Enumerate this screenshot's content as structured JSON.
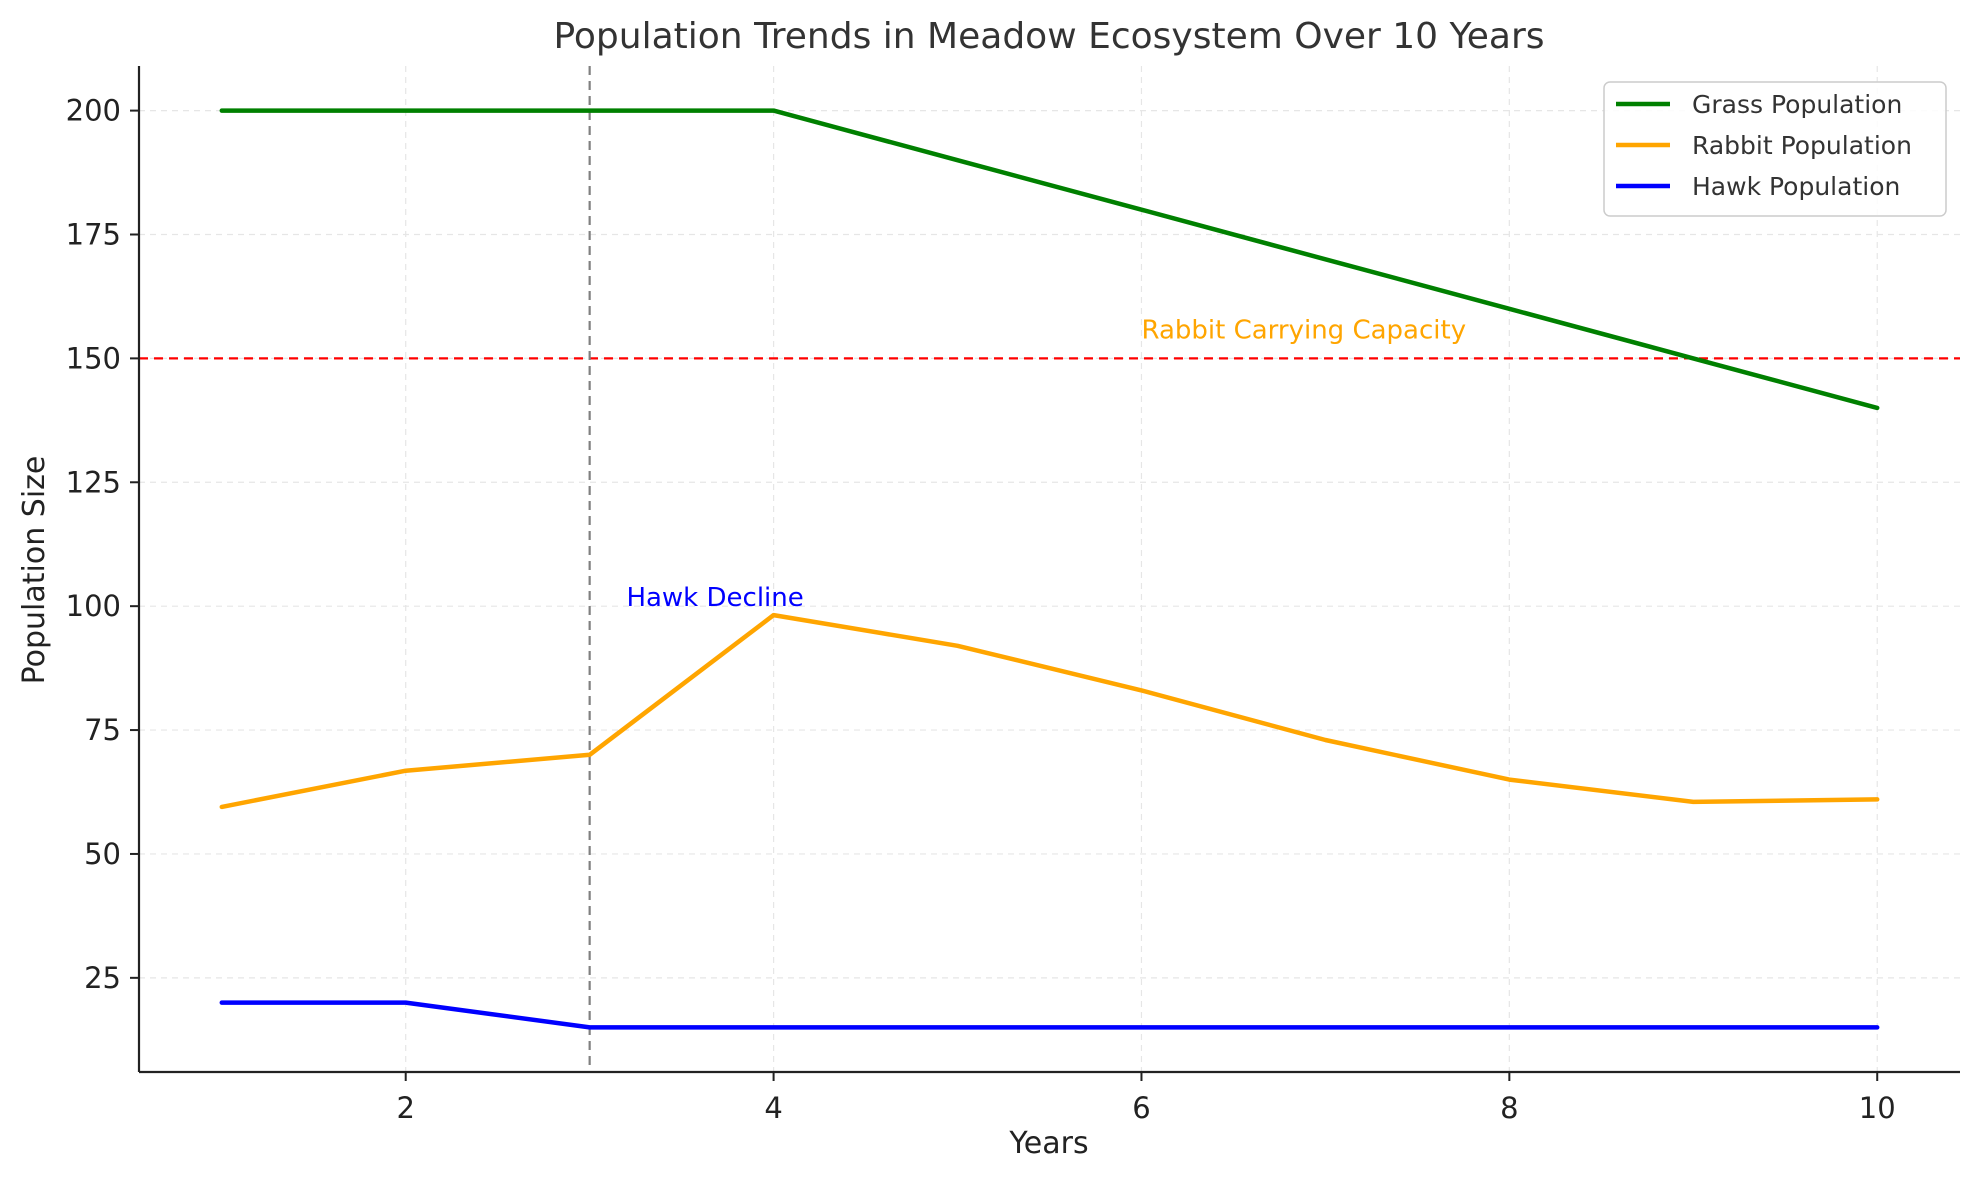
{
  "chart_data": {
    "type": "line",
    "title": "Population Trends in Meadow Ecosystem Over 10 Years",
    "xlabel": "Years",
    "ylabel": "Population Size",
    "xlim": [
      0.55,
      10.45
    ],
    "ylim": [
      6,
      209
    ],
    "xticks": [
      2,
      4,
      6,
      8,
      10
    ],
    "yticks": [
      25,
      50,
      75,
      100,
      125,
      150,
      175,
      200
    ],
    "grid": true,
    "legend_position": "top-right",
    "x": [
      1,
      2,
      3,
      4,
      5,
      6,
      7,
      8,
      9,
      10
    ],
    "series": [
      {
        "name": "Grass Population",
        "color": "#008000",
        "values": [
          200,
          200,
          200,
          200,
          190,
          180,
          170,
          160,
          150,
          140
        ]
      },
      {
        "name": "Rabbit Population",
        "color": "#FFA500",
        "values": [
          59.5,
          66.8,
          70,
          98.2,
          92,
          83,
          73,
          65,
          60.5,
          61
        ]
      },
      {
        "name": "Hawk Population",
        "color": "#0000FF",
        "values": [
          20,
          20,
          15,
          15,
          15,
          15,
          15,
          15,
          15,
          15
        ]
      }
    ],
    "reference_lines": [
      {
        "orientation": "horizontal",
        "value": 150,
        "color": "#FF0000",
        "style": "dashed"
      },
      {
        "orientation": "vertical",
        "value": 3,
        "color": "#808080",
        "style": "dashed"
      }
    ],
    "annotations": [
      {
        "text": "Rabbit Carrying Capacity",
        "x": 6,
        "y": 154,
        "color": "#FFA500"
      },
      {
        "text": "Hawk Decline",
        "x": 3.2,
        "y": 100,
        "color": "#0000FF"
      }
    ]
  }
}
